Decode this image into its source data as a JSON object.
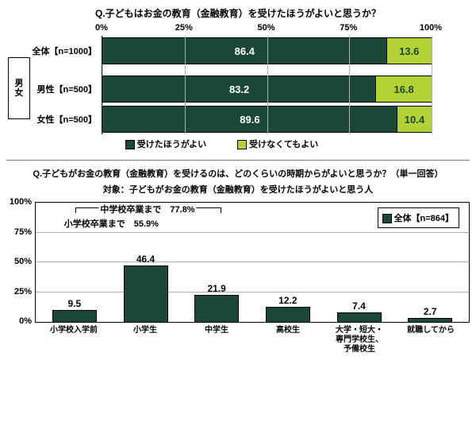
{
  "chart1": {
    "title": "Q.子どもはお金の教育（金融教育）を受けたほうがよいと思うか？",
    "x_ticks": [
      "0%",
      "25%",
      "50%",
      "75%",
      "100%"
    ],
    "x_tick_pos": [
      0,
      25,
      50,
      75,
      100
    ],
    "rows": [
      {
        "label": "全体【n=1000】",
        "v1": 86.4,
        "v2": 13.6
      },
      {
        "label": "男性【n=500】",
        "v1": 83.2,
        "v2": 16.8
      },
      {
        "label": "女性【n=500】",
        "v1": 89.6,
        "v2": 10.4
      }
    ],
    "gender_label": "男女",
    "series": [
      {
        "label": "受けたほうがよい",
        "color": "#1a4736",
        "text": "#ffffff"
      },
      {
        "label": "受けなくてもよい",
        "color": "#b3d334",
        "text": "#1a4736"
      }
    ]
  },
  "chart2": {
    "title": "Q.子どもがお金の教育（金融教育）を受けるのは、どのくらいの時期からがよいと思うか？（単一回答）",
    "subtitle": "対象：子どもがお金の教育（金融教育）を受けたほうがよいと思う人",
    "legend": "全体【n=864】",
    "y_ticks": [
      "0%",
      "25%",
      "50%",
      "75%",
      "100%"
    ],
    "y_tick_pos": [
      0,
      25,
      50,
      75,
      100
    ],
    "ylim_max": 100,
    "bar_color": "#1a4736",
    "bars": [
      {
        "label": "小学校入学前",
        "value": 9.5
      },
      {
        "label": "小学生",
        "value": 46.4
      },
      {
        "label": "中学生",
        "value": 21.9
      },
      {
        "label": "高校生",
        "value": 12.2
      },
      {
        "label": "大学・短大・\n専門学校生、\n予備校生",
        "value": 7.4
      },
      {
        "label": "就職してから",
        "value": 2.7
      }
    ],
    "brackets": [
      {
        "label": "小学校卒業まで　55.9%",
        "from": 0,
        "to": 1,
        "y_offset": 24
      },
      {
        "label": "中学校卒業まで　77.8%",
        "from": 0,
        "to": 2,
        "y_offset": 6
      }
    ]
  }
}
